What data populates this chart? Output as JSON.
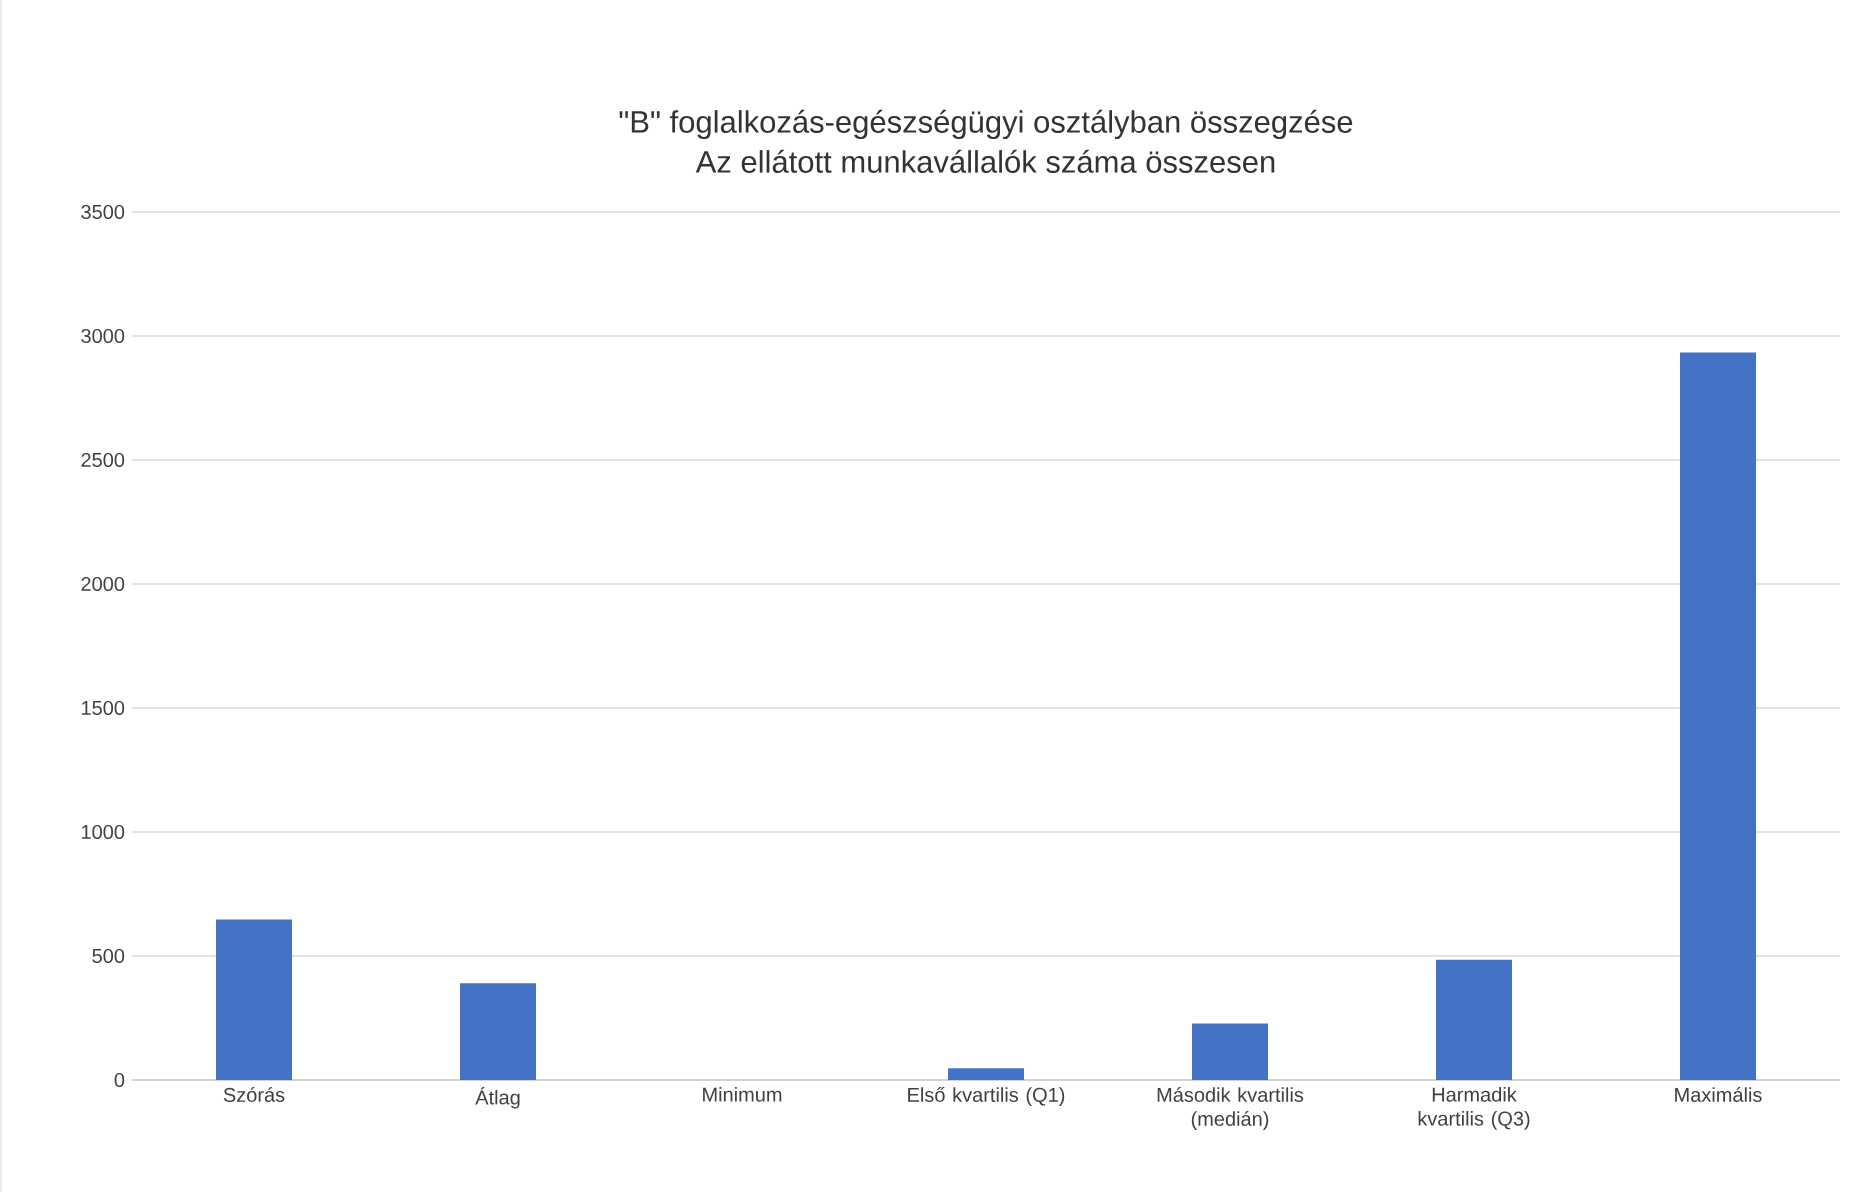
{
  "chart_data": {
    "type": "bar",
    "title": "\"B\" foglalkozás-egészségügyi osztályban összegzése",
    "subtitle": "Az ellátott munkavállalók száma összesen",
    "categories": [
      "Szórás",
      "Átlag",
      "Minimum",
      "Első kvartilis (Q1)",
      "Második kvartilis (medián)",
      "Harmadik kvartilis (Q3)",
      "Maximális"
    ],
    "values": [
      647,
      390,
      0,
      47,
      228,
      485,
      2933
    ],
    "color": "#4472c4",
    "ylim": [
      0,
      3500
    ],
    "yticks": [
      0,
      500,
      1000,
      1500,
      2000,
      2500,
      3000,
      3500
    ],
    "grid": "y"
  }
}
